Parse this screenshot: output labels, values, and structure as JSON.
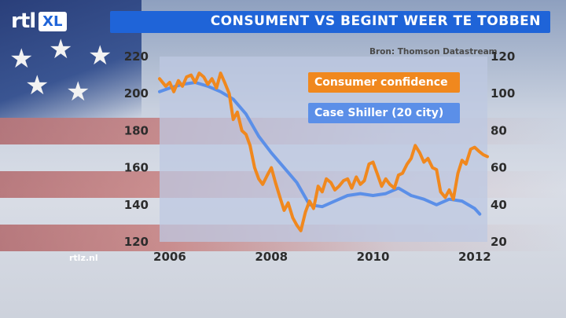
{
  "header": {
    "title": "CONSUMENT VS BEGINT WEER TE TOBBEN",
    "logo_left": "rtl",
    "logo_right": "XL"
  },
  "source": "Bron: Thomson Datastream",
  "site": "rtlz.nl",
  "colors": {
    "title_bar": "#1f64d8",
    "consumer_confidence": "#f0881e",
    "case_shiller": "#5b8fe8"
  },
  "chart_data": {
    "type": "line",
    "title": "CONSUMENT VS BEGINT WEER TE TOBBEN",
    "xlabel": "",
    "ylabel": "",
    "xlim": [
      2005.8,
      2012.25
    ],
    "xticks": [
      "2006",
      "2008",
      "2010",
      "2012"
    ],
    "xtick_values": [
      2006,
      2008,
      2010,
      2012
    ],
    "y_left": {
      "lim": [
        120,
        220
      ],
      "ticks": [
        "120",
        "140",
        "160",
        "180",
        "200",
        "220"
      ]
    },
    "y_right": {
      "lim": [
        20,
        120
      ],
      "ticks": [
        "20",
        "40",
        "60",
        "80",
        "100",
        "120"
      ]
    },
    "legend": {
      "placement": "top-center"
    },
    "grid": false,
    "series": [
      {
        "name": "Consumer confidence",
        "axis": "right",
        "color": "#f0881e",
        "x": [
          2005.8,
          2005.92,
          2006.0,
          2006.08,
          2006.17,
          2006.25,
          2006.33,
          2006.42,
          2006.5,
          2006.58,
          2006.67,
          2006.75,
          2006.83,
          2006.92,
          2007.0,
          2007.08,
          2007.17,
          2007.25,
          2007.33,
          2007.42,
          2007.5,
          2007.58,
          2007.67,
          2007.75,
          2007.83,
          2007.92,
          2008.0,
          2008.08,
          2008.17,
          2008.25,
          2008.33,
          2008.42,
          2008.5,
          2008.58,
          2008.67,
          2008.75,
          2008.83,
          2008.92,
          2009.0,
          2009.08,
          2009.17,
          2009.25,
          2009.33,
          2009.42,
          2009.5,
          2009.58,
          2009.67,
          2009.75,
          2009.83,
          2009.92,
          2010.0,
          2010.08,
          2010.17,
          2010.25,
          2010.33,
          2010.42,
          2010.5,
          2010.58,
          2010.67,
          2010.75,
          2010.83,
          2010.92,
          2011.0,
          2011.08,
          2011.17,
          2011.25,
          2011.33,
          2011.42,
          2011.5,
          2011.58,
          2011.67,
          2011.75,
          2011.83,
          2011.92,
          2012.0,
          2012.08,
          2012.17,
          2012.25
        ],
        "values": [
          108,
          104,
          106,
          101,
          107,
          104,
          109,
          110,
          106,
          111,
          109,
          105,
          108,
          103,
          111,
          106,
          100,
          86,
          90,
          80,
          78,
          72,
          60,
          54,
          51,
          56,
          60,
          52,
          44,
          37,
          41,
          33,
          29,
          26,
          36,
          42,
          38,
          50,
          47,
          54,
          52,
          48,
          50,
          53,
          54,
          49,
          55,
          51,
          53,
          62,
          63,
          57,
          50,
          54,
          51,
          49,
          56,
          57,
          62,
          65,
          72,
          68,
          63,
          65,
          60,
          59,
          47,
          44,
          48,
          43,
          57,
          64,
          62,
          70,
          71,
          69,
          67,
          66
        ]
      },
      {
        "name": "Case Shiller (20 city)",
        "axis": "left",
        "color": "#5b8fe8",
        "x": [
          2005.8,
          2006.0,
          2006.25,
          2006.5,
          2006.75,
          2007.0,
          2007.25,
          2007.5,
          2007.75,
          2008.0,
          2008.25,
          2008.5,
          2008.75,
          2009.0,
          2009.25,
          2009.5,
          2009.75,
          2010.0,
          2010.25,
          2010.5,
          2010.75,
          2011.0,
          2011.25,
          2011.5,
          2011.75,
          2012.0,
          2012.1
        ],
        "values": [
          201,
          203,
          205,
          206,
          204,
          201,
          197,
          189,
          177,
          168,
          160,
          152,
          140,
          139,
          142,
          145,
          146,
          145,
          146,
          149,
          145,
          143,
          140,
          143,
          142,
          138,
          135
        ]
      }
    ]
  }
}
